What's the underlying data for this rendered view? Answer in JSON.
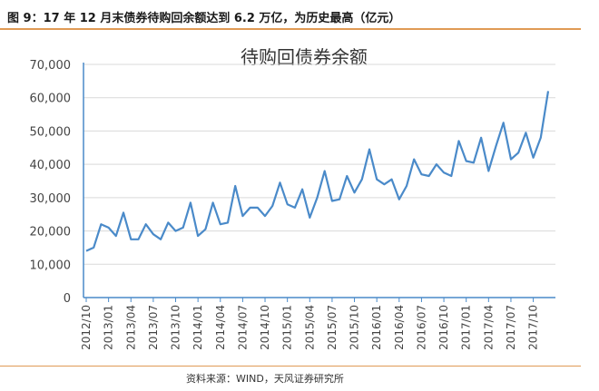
{
  "figure_title": "图 9：17 年 12 月末债券待购回余额达到 6.2 万亿，为历史最高（亿元）",
  "source": "资料来源：WIND，天风证券研究所",
  "colors": {
    "line": "#4a8ac9",
    "axis": "#4a8ac9",
    "grid": "#d9d9d9",
    "rule": "#e09a55"
  },
  "chart_data": {
    "type": "line",
    "title": "待购回债券余额",
    "ylim": [
      0,
      70000
    ],
    "yticks": [
      "0",
      "10,000",
      "20,000",
      "30,000",
      "40,000",
      "50,000",
      "60,000",
      "70,000"
    ],
    "grid": true,
    "xtick_labels": [
      "2012/10",
      "2013/01",
      "2013/04",
      "2013/07",
      "2013/10",
      "2014/01",
      "2014/04",
      "2014/07",
      "2014/10",
      "2015/01",
      "2015/04",
      "2015/07",
      "2015/10",
      "2016/01",
      "2016/04",
      "2016/07",
      "2016/10",
      "2017/01",
      "2017/04",
      "2017/07",
      "2017/10"
    ],
    "start": "2012/10",
    "values": [
      14000,
      15000,
      22000,
      21000,
      18500,
      25500,
      17500,
      17500,
      22000,
      19000,
      17500,
      22500,
      20000,
      21000,
      28500,
      18500,
      20500,
      28500,
      22000,
      22500,
      33500,
      24500,
      27000,
      27000,
      24500,
      27500,
      34500,
      28000,
      27000,
      32500,
      24000,
      30000,
      38000,
      29000,
      29500,
      36500,
      31500,
      35500,
      44500,
      35500,
      34000,
      35500,
      29500,
      33500,
      41500,
      37000,
      36500,
      40000,
      37500,
      36500,
      47000,
      41000,
      40500,
      48000,
      38000,
      45500,
      52500,
      41500,
      43500,
      49500,
      42000,
      48000,
      62000
    ]
  }
}
